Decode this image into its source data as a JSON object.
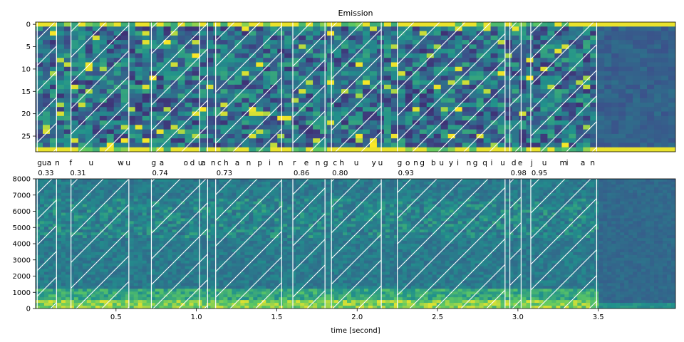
{
  "chart_data": [
    {
      "type": "heatmap",
      "title": "Emission",
      "ylim": [
        28.5,
        -0.5
      ],
      "ytick_values": [
        0,
        5,
        10,
        15,
        20,
        25
      ],
      "xlim": [
        0,
        3.98
      ],
      "colormap": "viridis"
    },
    {
      "type": "heatmap",
      "subtype": "spectrogram",
      "xlabel": "time [second]",
      "ylim": [
        0,
        8000
      ],
      "ytick_values": [
        0,
        1000,
        2000,
        3000,
        4000,
        5000,
        6000,
        7000,
        8000
      ],
      "xlim": [
        0,
        3.98
      ],
      "xtick_values": [
        0.5,
        1.0,
        1.5,
        2.0,
        2.5,
        3.0,
        3.5
      ],
      "colormap": "viridis"
    }
  ],
  "word_segments": [
    {
      "start": 0.01,
      "end": 0.13
    },
    {
      "start": 0.22,
      "end": 0.58
    },
    {
      "start": 0.72,
      "end": 1.07
    },
    {
      "start": 1.12,
      "end": 1.53
    },
    {
      "start": 1.6,
      "end": 1.8
    },
    {
      "start": 1.84,
      "end": 2.15
    },
    {
      "start": 2.25,
      "end": 2.92
    },
    {
      "start": 2.95,
      "end": 3.02
    },
    {
      "start": 3.08,
      "end": 3.49
    }
  ],
  "char_boundaries": [
    0.01,
    0.13,
    0.22,
    0.58,
    0.72,
    1.02,
    1.07,
    1.12,
    1.53,
    1.6,
    1.8,
    1.84,
    2.15,
    2.25,
    2.92,
    2.95,
    3.02,
    3.08,
    3.49
  ],
  "char_labels": [
    {
      "text": "gua",
      "t": 0.01
    },
    {
      "text": "n",
      "t": 0.12
    },
    {
      "text": "f",
      "t": 0.21
    },
    {
      "text": "u",
      "t": 0.33
    },
    {
      "text": "w",
      "t": 0.51
    },
    {
      "text": "u",
      "t": 0.56
    },
    {
      "text": "g",
      "t": 0.72
    },
    {
      "text": "a",
      "t": 0.77
    },
    {
      "text": "o",
      "t": 0.92
    },
    {
      "text": "d",
      "t": 0.96
    },
    {
      "text": "u",
      "t": 1.01
    },
    {
      "text": "a",
      "t": 1.03
    },
    {
      "text": "n",
      "t": 1.09
    },
    {
      "text": "c",
      "t": 1.13
    },
    {
      "text": "h",
      "t": 1.17
    },
    {
      "text": "a",
      "t": 1.24
    },
    {
      "text": "n",
      "t": 1.31
    },
    {
      "text": "p",
      "t": 1.38
    },
    {
      "text": "i",
      "t": 1.45
    },
    {
      "text": "n",
      "t": 1.51
    },
    {
      "text": "r",
      "t": 1.6
    },
    {
      "text": "e",
      "t": 1.67
    },
    {
      "text": "n",
      "t": 1.74
    },
    {
      "text": "g",
      "t": 1.79
    },
    {
      "text": "c",
      "t": 1.85
    },
    {
      "text": "h",
      "t": 1.89
    },
    {
      "text": "u",
      "t": 1.98
    },
    {
      "text": "y",
      "t": 2.09
    },
    {
      "text": "u",
      "t": 2.13
    },
    {
      "text": "g",
      "t": 2.25
    },
    {
      "text": "o",
      "t": 2.3
    },
    {
      "text": "n",
      "t": 2.35
    },
    {
      "text": "g",
      "t": 2.39
    },
    {
      "text": "b",
      "t": 2.46
    },
    {
      "text": "u",
      "t": 2.51
    },
    {
      "text": "y",
      "t": 2.57
    },
    {
      "text": "i",
      "t": 2.62
    },
    {
      "text": "n",
      "t": 2.68
    },
    {
      "text": "g",
      "t": 2.72
    },
    {
      "text": "q",
      "t": 2.78
    },
    {
      "text": "i",
      "t": 2.83
    },
    {
      "text": "u",
      "t": 2.89
    },
    {
      "text": "d",
      "t": 2.96
    },
    {
      "text": "e",
      "t": 3.0
    },
    {
      "text": "j",
      "t": 3.08
    },
    {
      "text": "u",
      "t": 3.15
    },
    {
      "text": "m",
      "t": 3.26
    },
    {
      "text": "i",
      "t": 3.3
    },
    {
      "text": "a",
      "t": 3.39
    },
    {
      "text": "n",
      "t": 3.45
    }
  ],
  "word_scores": [
    {
      "text": "0.33",
      "t": 0.01
    },
    {
      "text": "0.31",
      "t": 0.21
    },
    {
      "text": "0.74",
      "t": 0.72
    },
    {
      "text": "0.73",
      "t": 1.12
    },
    {
      "text": "0.86",
      "t": 1.6
    },
    {
      "text": "0.80",
      "t": 1.84
    },
    {
      "text": "0.93",
      "t": 2.25
    },
    {
      "text": "0.98",
      "t": 2.95
    },
    {
      "text": "0.95",
      "t": 3.08
    }
  ]
}
